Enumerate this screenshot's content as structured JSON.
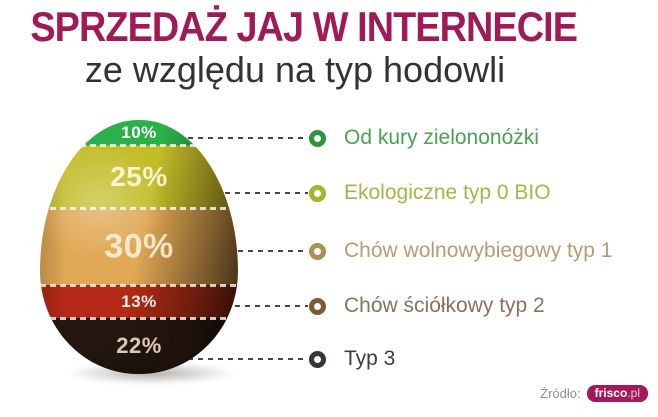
{
  "title": "SPRZEDAŻ JAJ W INTERNECIE",
  "subtitle": "ze względu na typ hodowli",
  "source": {
    "label": "Źródło:",
    "brand": "frisco",
    "brand_suffix": ".pl"
  },
  "theme": {
    "title_color": "#a01a58",
    "subtitle_color": "#333333",
    "connector_color": "#474747",
    "source_label_color": "#8f8f8f",
    "brand_bg": "#a5195c",
    "brand_text": "#ffffff"
  },
  "chart_data": {
    "type": "pie",
    "title": "Sprzedaż jaj w internecie ze względu na typ hodowli",
    "legend_position": "right",
    "units": "%",
    "segments": [
      {
        "label": "Od kury zielononóżki",
        "value_pct": 10,
        "band_color": "#2bb04a",
        "ring_color": "#27963c",
        "text_color": "#4aa253"
      },
      {
        "label": "Ekologiczne typ 0 BIO",
        "value_pct": 25,
        "band_color": "#c3bd28",
        "ring_color": "#a4b42c",
        "text_color": "#a9b348"
      },
      {
        "label": "Chów wolnowybiegowy typ 1",
        "value_pct": 30,
        "band_color": "#e0a855",
        "ring_color": "#ab9057",
        "text_color": "#b59c71"
      },
      {
        "label": "Chów  ściółkowy typ 2",
        "value_pct": 13,
        "band_color": "#b52a16",
        "ring_color": "#7d5c35",
        "text_color": "#8a7158"
      },
      {
        "label": "Typ 3",
        "value_pct": 22,
        "band_color": "#241711",
        "ring_color": "#383434",
        "text_color": "#3d3d3d"
      }
    ]
  }
}
